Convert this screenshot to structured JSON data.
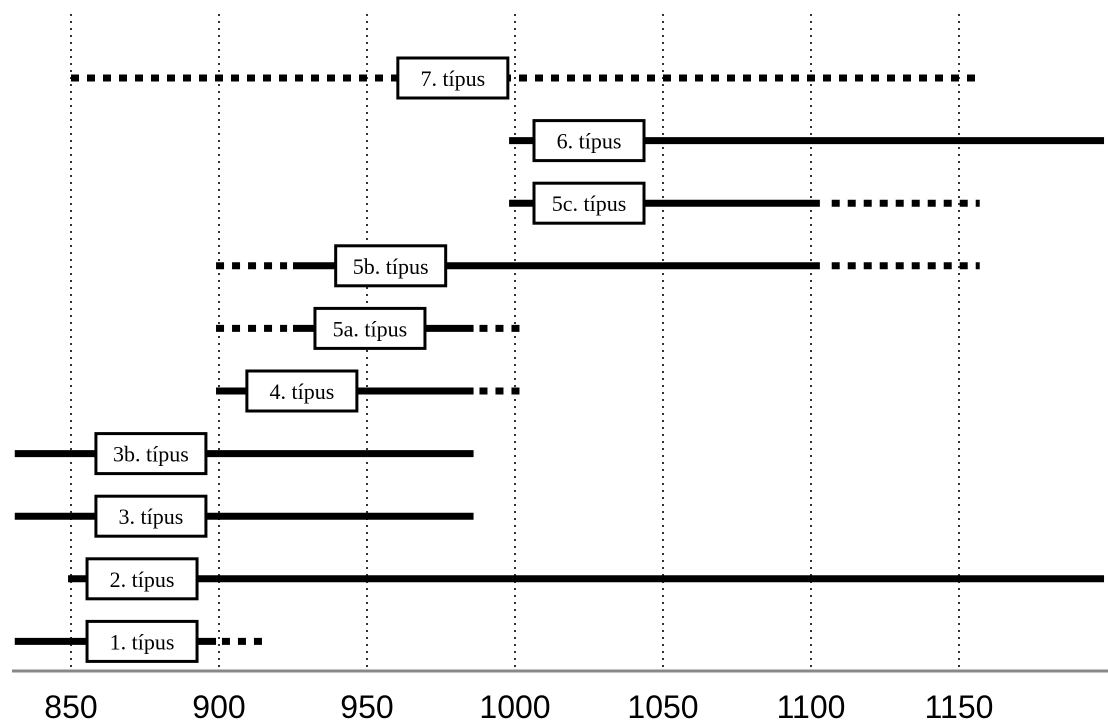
{
  "chart_data": {
    "type": "timeline",
    "title": "",
    "xlabel": "",
    "ylabel": "",
    "xlim": [
      831,
      1199
    ],
    "x_ticks": [
      850,
      900,
      950,
      1000,
      1050,
      1100,
      1150
    ],
    "x_tick_labels": [
      "850",
      "900",
      "950",
      "1000",
      "1050",
      "1100",
      "1150"
    ],
    "grid": "vertical dotted lines at x ticks",
    "series": [
      {
        "label": "7. típus",
        "label_center": 979,
        "segments": [
          {
            "style": "dotted",
            "start": 850,
            "end": 1157
          }
        ]
      },
      {
        "label": "6. típus",
        "label_center": 1025,
        "segments": [
          {
            "style": "solid",
            "start": 998,
            "end": 1199
          }
        ]
      },
      {
        "label": "5c. típus",
        "label_center": 1025,
        "segments": [
          {
            "style": "solid",
            "start": 998,
            "end": 1103
          },
          {
            "style": "dotted",
            "start": 1107,
            "end": 1157
          }
        ]
      },
      {
        "label": "5b. típus",
        "label_center": 958,
        "segments": [
          {
            "style": "dotted",
            "start": 899,
            "end": 923
          },
          {
            "style": "solid",
            "start": 925,
            "end": 1103
          },
          {
            "style": "dotted",
            "start": 1107,
            "end": 1157
          }
        ]
      },
      {
        "label": "5a. típus",
        "label_center": 951,
        "segments": [
          {
            "style": "dotted",
            "start": 899,
            "end": 923
          },
          {
            "style": "solid",
            "start": 925,
            "end": 986
          },
          {
            "style": "dotted",
            "start": 988,
            "end": 1003
          }
        ]
      },
      {
        "label": "4. típus",
        "label_center": 928,
        "segments": [
          {
            "style": "solid",
            "start": 899,
            "end": 986
          },
          {
            "style": "dotted",
            "start": 988,
            "end": 1003
          }
        ]
      },
      {
        "label": "3b. típus",
        "label_center": 877,
        "segments": [
          {
            "style": "solid",
            "start": 831,
            "end": 986
          }
        ]
      },
      {
        "label": "3. típus",
        "label_center": 877,
        "segments": [
          {
            "style": "solid",
            "start": 831,
            "end": 986
          }
        ]
      },
      {
        "label": "2. típus",
        "label_center": 874,
        "segments": [
          {
            "style": "solid",
            "start": 849,
            "end": 1199
          }
        ]
      },
      {
        "label": "1. típus",
        "label_center": 874,
        "segments": [
          {
            "style": "solid",
            "start": 831,
            "end": 899
          },
          {
            "style": "dotted",
            "start": 901,
            "end": 915
          }
        ]
      }
    ]
  }
}
